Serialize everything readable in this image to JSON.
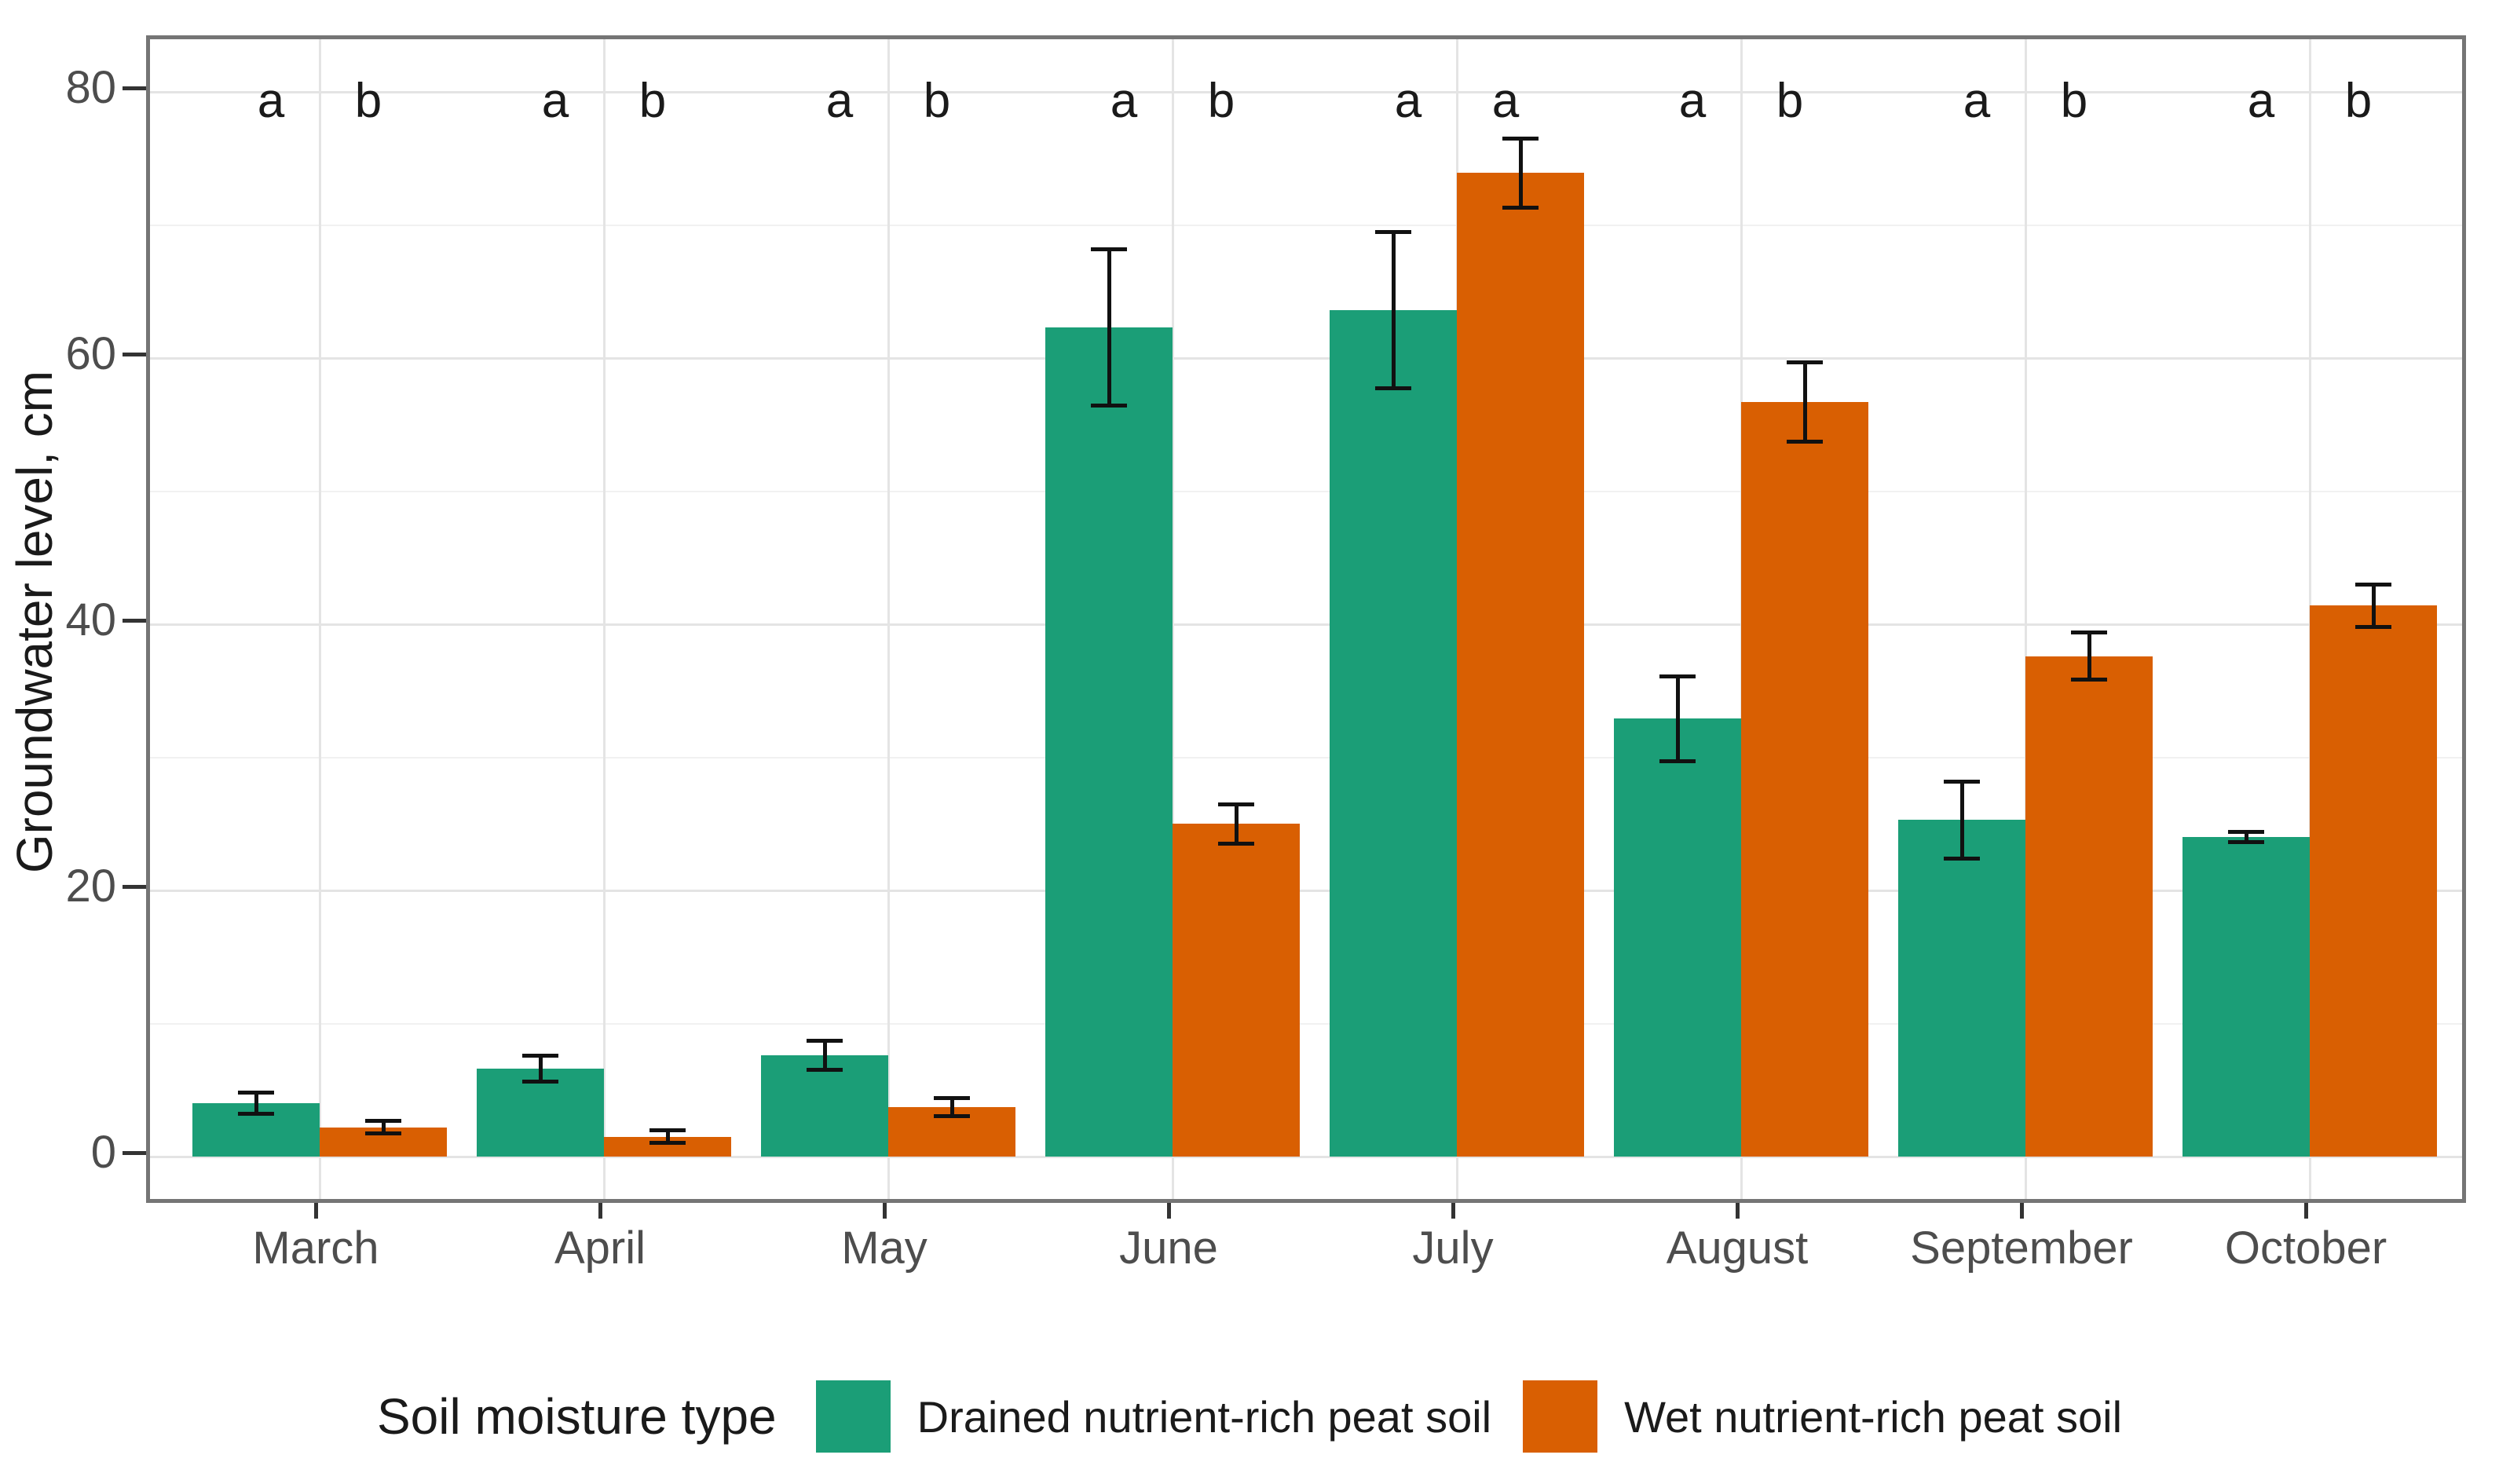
{
  "chart_data": {
    "type": "bar",
    "title": "",
    "xlabel": "",
    "ylabel": "Groundwater level, cm",
    "ylim": [
      0,
      80
    ],
    "yticks": [
      0,
      20,
      40,
      60,
      80
    ],
    "yticks_minor": [
      10,
      30,
      50,
      70
    ],
    "grid": true,
    "legend_position": "bottom",
    "legend_title": "Soil moisture type",
    "categories": [
      "March",
      "April",
      "May",
      "June",
      "July",
      "August",
      "September",
      "October"
    ],
    "series": [
      {
        "name": "Drained nutrient-rich peat soil",
        "color": "#1b9e77",
        "values": [
          4.0,
          6.6,
          7.6,
          62.3,
          63.6,
          32.9,
          25.3,
          24.0
        ],
        "errors": [
          0.7,
          0.9,
          1.0,
          5.8,
          5.8,
          3.1,
          2.8,
          0.3
        ],
        "sig_letters": [
          "a",
          "a",
          "a",
          "a",
          "a",
          "a",
          "a",
          "a"
        ]
      },
      {
        "name": "Wet nutrient-rich peat soil",
        "color": "#d95f02",
        "values": [
          2.2,
          1.5,
          3.7,
          25.0,
          73.9,
          56.7,
          37.6,
          41.4
        ],
        "errors": [
          0.4,
          0.4,
          0.6,
          1.4,
          2.5,
          2.9,
          1.7,
          1.5
        ],
        "sig_letters": [
          "b",
          "b",
          "b",
          "b",
          "a",
          "b",
          "b",
          "b"
        ]
      }
    ],
    "error_bar_color": "#111111",
    "panel_border_color": "#757575",
    "major_grid_color": "#e4e4e4",
    "minor_grid_color": "#f1f1f1"
  }
}
